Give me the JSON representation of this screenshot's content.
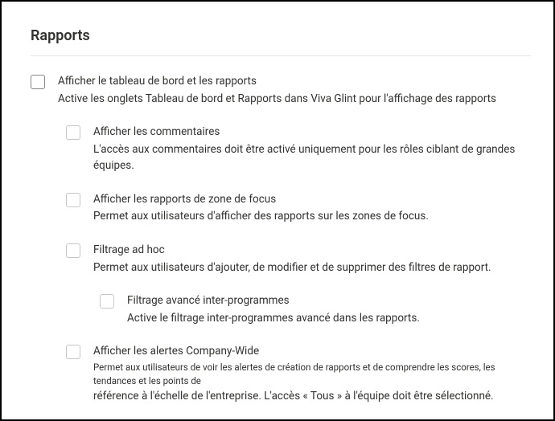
{
  "section": {
    "title": "Rapports"
  },
  "items": [
    {
      "label": "Afficher le tableau de bord et les rapports",
      "desc": "Active les onglets Tableau de bord et Rapports dans Viva Glint pour l'affichage des rapports"
    },
    {
      "label": "Afficher les commentaires",
      "desc": "L'accès aux commentaires doit être activé uniquement pour les rôles ciblant de grandes équipes."
    },
    {
      "label": "Afficher les rapports de zone de focus",
      "desc": "Permet aux utilisateurs d'afficher des rapports sur les zones de focus."
    },
    {
      "label": "Filtrage ad hoc",
      "desc": "Permet aux utilisateurs d'ajouter, de modifier et de supprimer des filtres de rapport."
    },
    {
      "label": "Filtrage avancé inter-programmes",
      "desc": "Active le filtrage inter-programmes avancé dans les rapports."
    },
    {
      "label": "Afficher les alertes Company-Wide",
      "desc_small": "Permet aux utilisateurs de voir les alertes de création de rapports et de comprendre les scores, les tendances et les points de",
      "desc2": "référence à l'échelle de l'entreprise. L'accès « Tous » à l'équipe doit être sélectionné."
    }
  ]
}
